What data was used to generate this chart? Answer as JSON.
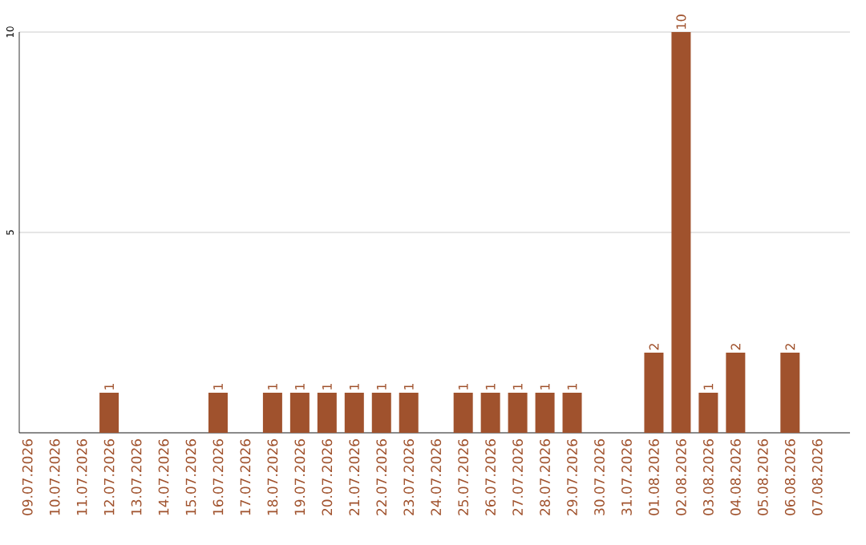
{
  "chart_data": {
    "type": "bar",
    "categories": [
      "09.07.2026",
      "10.07.2026",
      "11.07.2026",
      "12.07.2026",
      "13.07.2026",
      "14.07.2026",
      "15.07.2026",
      "16.07.2026",
      "17.07.2026",
      "18.07.2026",
      "19.07.2026",
      "20.07.2026",
      "21.07.2026",
      "22.07.2026",
      "23.07.2026",
      "24.07.2026",
      "25.07.2026",
      "26.07.2026",
      "27.07.2026",
      "28.07.2026",
      "29.07.2026",
      "30.07.2026",
      "31.07.2026",
      "01.08.2026",
      "02.08.2026",
      "03.08.2026",
      "04.08.2026",
      "05.08.2026",
      "06.08.2026",
      "07.08.2026"
    ],
    "values": [
      0,
      0,
      0,
      1,
      0,
      0,
      0,
      1,
      0,
      1,
      1,
      1,
      1,
      1,
      1,
      0,
      1,
      1,
      1,
      1,
      1,
      0,
      0,
      2,
      10,
      1,
      2,
      0,
      2,
      0
    ],
    "value_labels": [
      null,
      null,
      null,
      "1",
      null,
      null,
      null,
      "1",
      null,
      "1",
      "1",
      "1",
      "1",
      "1",
      "1",
      null,
      "1",
      "1",
      "1",
      "1",
      "1",
      null,
      null,
      "2",
      "10",
      "1",
      "2",
      null,
      "2",
      null
    ],
    "color": "#a0522d",
    "ylim": [
      0,
      10
    ],
    "yticks": [
      {
        "value": 0,
        "label": null
      },
      5,
      10
    ],
    "grid": "y"
  }
}
